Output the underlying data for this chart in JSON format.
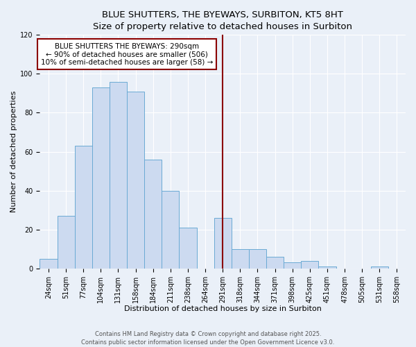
{
  "title": "BLUE SHUTTERS, THE BYEWAYS, SURBITON, KT5 8HT",
  "subtitle": "Size of property relative to detached houses in Surbiton",
  "xlabel": "Distribution of detached houses by size in Surbiton",
  "ylabel": "Number of detached properties",
  "bin_labels": [
    "24sqm",
    "51sqm",
    "77sqm",
    "104sqm",
    "131sqm",
    "158sqm",
    "184sqm",
    "211sqm",
    "238sqm",
    "264sqm",
    "291sqm",
    "318sqm",
    "344sqm",
    "371sqm",
    "398sqm",
    "425sqm",
    "451sqm",
    "478sqm",
    "505sqm",
    "531sqm",
    "558sqm"
  ],
  "counts": [
    5,
    27,
    63,
    93,
    96,
    91,
    56,
    40,
    21,
    0,
    26,
    10,
    10,
    6,
    3,
    4,
    1,
    0,
    0,
    1,
    0
  ],
  "bar_color": "#ccdaf0",
  "bar_edgecolor": "#6aaad4",
  "vline_index": 10,
  "vline_color": "#8b0000",
  "annotation_line1": "BLUE SHUTTERS THE BYEWAYS: 290sqm",
  "annotation_line2": "← 90% of detached houses are smaller (506)",
  "annotation_line3": "10% of semi-detached houses are larger (58) →",
  "annotation_box_edgecolor": "#8b0000",
  "annotation_box_facecolor": "#ffffff",
  "ylim": [
    0,
    120
  ],
  "yticks": [
    0,
    20,
    40,
    60,
    80,
    100,
    120
  ],
  "footer1": "Contains HM Land Registry data © Crown copyright and database right 2025.",
  "footer2": "Contains public sector information licensed under the Open Government Licence v3.0.",
  "bg_color": "#eaf0f8",
  "plot_bg_color": "#eaf0f8",
  "grid_color": "#ffffff",
  "title_fontsize": 9.5,
  "label_fontsize": 8,
  "tick_fontsize": 7,
  "footer_fontsize": 6,
  "annotation_fontsize": 7.5
}
